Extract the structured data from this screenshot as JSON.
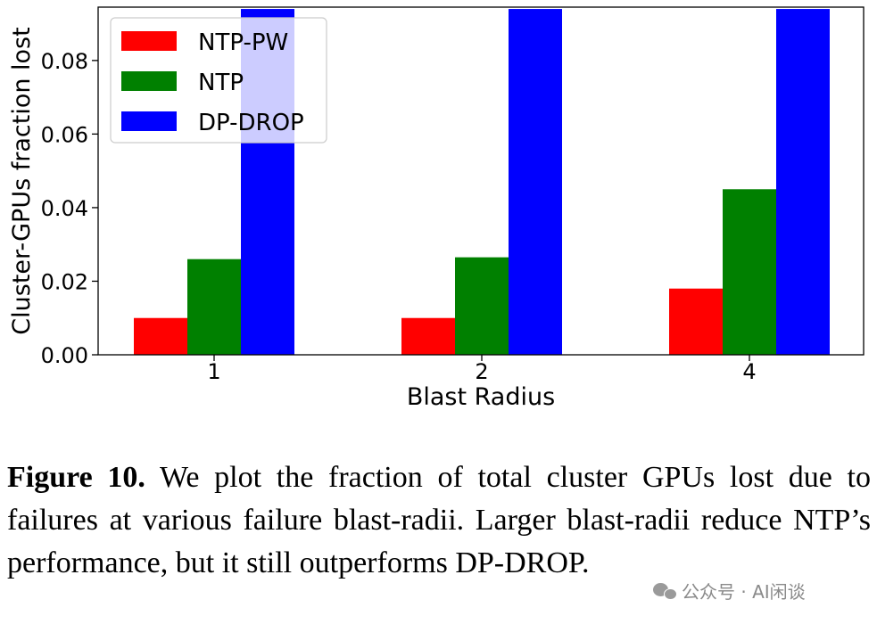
{
  "chart_data": {
    "type": "bar",
    "categories": [
      "1",
      "2",
      "4"
    ],
    "series": [
      {
        "name": "NTP-PW",
        "color": "#ff0000",
        "values": [
          0.01,
          0.01,
          0.018
        ]
      },
      {
        "name": "NTP",
        "color": "#008000",
        "values": [
          0.026,
          0.0265,
          0.045
        ]
      },
      {
        "name": "DP-DROP",
        "color": "#0000ff",
        "values": [
          0.094,
          0.094,
          0.094
        ]
      }
    ],
    "title": "",
    "xlabel": "Blast Radius",
    "ylabel": "Cluster-GPUs fraction lost",
    "ylim": [
      0,
      0.0945
    ],
    "yticks": [
      "0.00",
      "0.02",
      "0.04",
      "0.06",
      "0.08"
    ],
    "grid": false,
    "legend": "top-left"
  },
  "caption": {
    "label": "Figure 10.",
    "text": "We plot the fraction of total cluster GPUs lost due to failures at various failure blast-radii. Larger blast-radii reduce NTP’s performance, but it still outperforms DP-DROP."
  },
  "watermark": {
    "icon": "wechat-icon",
    "text": "公众号 · AI闲谈"
  }
}
